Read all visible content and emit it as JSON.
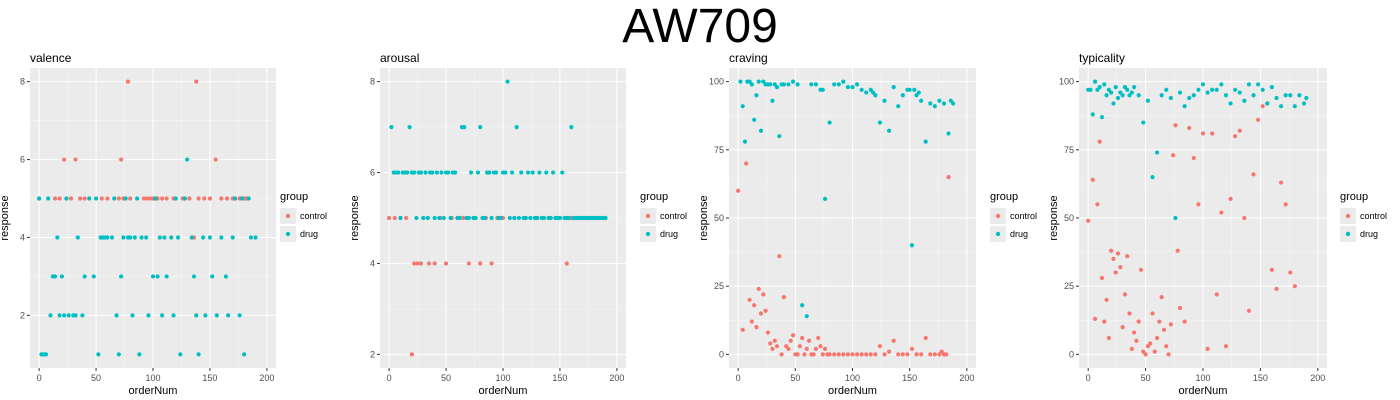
{
  "title": "AW709",
  "colors": {
    "control": "#F8766D",
    "drug": "#00BFC4"
  },
  "legend": {
    "title": "group",
    "labels": [
      "control",
      "drug"
    ]
  },
  "chart_data": [
    {
      "type": "scatter",
      "title": "valence",
      "xlabel": "orderNum",
      "ylabel": "response",
      "xlim": [
        -8,
        208
      ],
      "ylim": [
        0.65,
        8.35
      ],
      "xticks": [
        0,
        50,
        100,
        150,
        200
      ],
      "yticks": [
        2,
        4,
        6,
        8
      ],
      "grid": true,
      "legend_position": "right",
      "series": [
        {
          "name": "control",
          "x": [
            0,
            14,
            18,
            22,
            24,
            28,
            32,
            36,
            40,
            55,
            60,
            70,
            72,
            74,
            78,
            80,
            92,
            95,
            98,
            100,
            104,
            108,
            112,
            118,
            126,
            132,
            136,
            138,
            140,
            145,
            150,
            155,
            160,
            165,
            170,
            172,
            176,
            180,
            182
          ],
          "y": [
            5,
            5,
            5,
            6,
            5,
            5,
            6,
            5,
            5,
            5,
            5,
            5,
            6,
            5,
            8,
            5,
            5,
            5,
            5,
            5,
            5,
            5,
            5,
            5,
            5,
            5,
            4,
            8,
            5,
            5,
            5,
            6,
            5,
            5,
            5,
            5,
            5,
            5,
            5
          ]
        },
        {
          "name": "drug",
          "x": [
            0,
            2,
            4,
            6,
            8,
            10,
            12,
            14,
            16,
            18,
            20,
            22,
            24,
            26,
            30,
            32,
            34,
            38,
            40,
            44,
            48,
            50,
            52,
            54,
            56,
            58,
            60,
            64,
            66,
            68,
            70,
            72,
            74,
            76,
            78,
            80,
            82,
            84,
            86,
            88,
            90,
            94,
            96,
            100,
            102,
            104,
            106,
            108,
            110,
            112,
            116,
            118,
            120,
            122,
            124,
            128,
            130,
            134,
            136,
            138,
            140,
            144,
            146,
            150,
            152,
            156,
            160,
            164,
            166,
            170,
            172,
            176,
            178,
            180,
            184,
            186,
            190
          ],
          "y": [
            5,
            1,
            1,
            1,
            5,
            2,
            3,
            3,
            4,
            2,
            3,
            2,
            5,
            2,
            2,
            2,
            4,
            2,
            3,
            5,
            3,
            5,
            1,
            4,
            4,
            4,
            4,
            4,
            5,
            2,
            1,
            3,
            4,
            5,
            4,
            4,
            2,
            4,
            5,
            1,
            4,
            4,
            2,
            3,
            5,
            3,
            4,
            2,
            4,
            3,
            4,
            2,
            5,
            4,
            1,
            5,
            6,
            4,
            3,
            2,
            1,
            4,
            2,
            4,
            3,
            2,
            4,
            3,
            2,
            4,
            5,
            2,
            5,
            1,
            5,
            4,
            4
          ]
        }
      ]
    },
    {
      "type": "scatter",
      "title": "arousal",
      "xlabel": "orderNum",
      "ylabel": "response",
      "xlim": [
        -8,
        208
      ],
      "ylim": [
        1.7,
        8.3
      ],
      "xticks": [
        0,
        50,
        100,
        150,
        200
      ],
      "yticks": [
        2,
        4,
        6,
        8
      ],
      "grid": true,
      "legend_position": "right",
      "series": [
        {
          "name": "control",
          "x": [
            0,
            5,
            10,
            15,
            20,
            22,
            25,
            28,
            30,
            35,
            40,
            45,
            50,
            55,
            60,
            65,
            70,
            75,
            80,
            85,
            90,
            95,
            100,
            110,
            120,
            130,
            140,
            150,
            156,
            160,
            165,
            170,
            175,
            180,
            185,
            190
          ],
          "y": [
            5,
            5,
            5,
            5,
            2,
            4,
            4,
            4,
            5,
            4,
            4,
            5,
            4,
            5,
            5,
            5,
            4,
            5,
            4,
            5,
            4,
            5,
            5,
            5,
            5,
            5,
            5,
            5,
            4,
            5,
            5,
            5,
            5,
            5,
            5,
            5
          ]
        },
        {
          "name": "drug",
          "x": [
            2,
            4,
            6,
            8,
            10,
            12,
            14,
            16,
            18,
            20,
            22,
            24,
            26,
            28,
            30,
            32,
            34,
            36,
            38,
            40,
            42,
            44,
            46,
            48,
            50,
            52,
            54,
            56,
            58,
            60,
            62,
            64,
            66,
            68,
            70,
            72,
            74,
            76,
            78,
            80,
            82,
            84,
            86,
            88,
            90,
            92,
            94,
            96,
            98,
            100,
            102,
            104,
            106,
            108,
            110,
            112,
            114,
            116,
            118,
            120,
            122,
            124,
            126,
            128,
            130,
            132,
            134,
            136,
            138,
            140,
            142,
            144,
            146,
            148,
            150,
            152,
            154,
            156,
            158,
            160,
            162,
            164,
            166,
            168,
            170,
            172,
            174,
            176,
            178,
            180,
            182,
            184,
            186,
            188,
            190
          ],
          "y": [
            7,
            6,
            6,
            6,
            5,
            6,
            6,
            6,
            7,
            6,
            6,
            5,
            6,
            6,
            5,
            6,
            5,
            6,
            6,
            5,
            6,
            5,
            6,
            5,
            6,
            6,
            5,
            6,
            6,
            5,
            5,
            7,
            7,
            5,
            5,
            6,
            5,
            5,
            6,
            7,
            5,
            5,
            6,
            6,
            5,
            6,
            6,
            5,
            5,
            6,
            6,
            8,
            5,
            6,
            5,
            7,
            5,
            6,
            5,
            5,
            6,
            5,
            6,
            5,
            5,
            6,
            5,
            5,
            6,
            5,
            5,
            6,
            5,
            5,
            5,
            6,
            5,
            5,
            5,
            7,
            5,
            5,
            5,
            5,
            5,
            5,
            5,
            5,
            5,
            5,
            5,
            5,
            5,
            5,
            5
          ]
        }
      ]
    },
    {
      "type": "scatter",
      "title": "craving",
      "xlabel": "orderNum",
      "ylabel": "response",
      "xlim": [
        -8,
        208
      ],
      "ylim": [
        -5,
        105
      ],
      "xticks": [
        0,
        50,
        100,
        150,
        200
      ],
      "yticks": [
        0,
        25,
        50,
        75,
        100
      ],
      "grid": true,
      "legend_position": "right",
      "series": [
        {
          "name": "control",
          "x": [
            0,
            4,
            7,
            10,
            12,
            14,
            16,
            18,
            20,
            22,
            24,
            26,
            28,
            30,
            32,
            34,
            36,
            38,
            40,
            42,
            44,
            46,
            48,
            50,
            52,
            54,
            56,
            58,
            60,
            62,
            64,
            66,
            68,
            70,
            72,
            74,
            76,
            78,
            80,
            84,
            88,
            92,
            96,
            100,
            104,
            108,
            112,
            116,
            120,
            124,
            128,
            132,
            136,
            140,
            144,
            148,
            152,
            156,
            160,
            164,
            168,
            172,
            176,
            178,
            180,
            182,
            184
          ],
          "y": [
            60,
            9,
            70,
            20,
            12,
            18,
            10,
            24,
            15,
            22,
            16,
            8,
            4,
            2,
            5,
            3,
            36,
            0,
            21,
            3,
            2,
            5,
            7,
            0,
            0,
            3,
            6,
            0,
            2,
            5,
            0,
            0,
            2,
            6,
            3,
            0,
            2,
            0,
            0,
            0,
            0,
            0,
            0,
            0,
            0,
            0,
            0,
            0,
            0,
            3,
            0,
            1,
            5,
            0,
            0,
            0,
            2,
            0,
            0,
            6,
            0,
            0,
            0,
            1,
            0,
            0,
            65
          ]
        },
        {
          "name": "drug",
          "x": [
            2,
            4,
            6,
            8,
            10,
            12,
            14,
            16,
            18,
            20,
            22,
            24,
            26,
            28,
            30,
            32,
            34,
            36,
            38,
            40,
            44,
            48,
            52,
            56,
            60,
            64,
            68,
            72,
            74,
            76,
            80,
            84,
            88,
            92,
            96,
            100,
            104,
            108,
            112,
            116,
            118,
            120,
            124,
            128,
            132,
            136,
            140,
            144,
            148,
            150,
            152,
            154,
            156,
            158,
            160,
            164,
            168,
            172,
            176,
            180,
            184,
            186,
            188
          ],
          "y": [
            100,
            91,
            78,
            100,
            100,
            99,
            86,
            95,
            100,
            82,
            100,
            99,
            99,
            99,
            93,
            99,
            98,
            80,
            99,
            99,
            99,
            100,
            99,
            18,
            14,
            99,
            99,
            97,
            97,
            57,
            85,
            99,
            99,
            100,
            98,
            98,
            99,
            97,
            96,
            97,
            96,
            95,
            85,
            93,
            82,
            98,
            91,
            95,
            97,
            97,
            40,
            97,
            95,
            96,
            93,
            78,
            92,
            91,
            93,
            92,
            81,
            93,
            92
          ]
        }
      ]
    },
    {
      "type": "scatter",
      "title": "typicality",
      "xlabel": "orderNum",
      "ylabel": "response",
      "xlim": [
        -8,
        208
      ],
      "ylim": [
        -5,
        105
      ],
      "xticks": [
        0,
        50,
        100,
        150,
        200
      ],
      "yticks": [
        0,
        25,
        50,
        75,
        100
      ],
      "grid": true,
      "legend_position": "right",
      "series": [
        {
          "name": "control",
          "x": [
            0,
            4,
            6,
            8,
            10,
            12,
            14,
            16,
            18,
            20,
            22,
            24,
            26,
            28,
            30,
            32,
            34,
            36,
            38,
            40,
            42,
            44,
            46,
            48,
            50,
            52,
            54,
            56,
            58,
            60,
            62,
            64,
            66,
            68,
            70,
            72,
            74,
            76,
            78,
            80,
            84,
            88,
            92,
            96,
            100,
            104,
            108,
            112,
            116,
            120,
            124,
            128,
            132,
            136,
            140,
            144,
            148,
            152,
            156,
            160,
            164,
            168,
            172,
            176,
            180
          ],
          "y": [
            49,
            64,
            13,
            55,
            78,
            28,
            12,
            20,
            6,
            38,
            35,
            30,
            37,
            32,
            10,
            22,
            36,
            15,
            2,
            8,
            5,
            12,
            31,
            1,
            0,
            3,
            4,
            15,
            1,
            6,
            12,
            21,
            9,
            3,
            0,
            11,
            73,
            84,
            38,
            17,
            12,
            83,
            72,
            55,
            81,
            2,
            81,
            22,
            52,
            3,
            57,
            80,
            82,
            50,
            16,
            66,
            86,
            91,
            92,
            31,
            24,
            63,
            55,
            30,
            25
          ]
        },
        {
          "name": "drug",
          "x": [
            0,
            2,
            4,
            6,
            8,
            10,
            12,
            14,
            16,
            18,
            20,
            22,
            24,
            26,
            28,
            30,
            32,
            34,
            36,
            38,
            40,
            44,
            48,
            52,
            56,
            60,
            64,
            68,
            72,
            76,
            80,
            84,
            88,
            92,
            96,
            100,
            104,
            108,
            112,
            116,
            120,
            124,
            128,
            132,
            136,
            140,
            144,
            148,
            152,
            156,
            160,
            164,
            168,
            172,
            176,
            180,
            184,
            188,
            190
          ],
          "y": [
            97,
            97,
            88,
            100,
            97,
            98,
            87,
            99,
            95,
            97,
            96,
            92,
            98,
            94,
            96,
            95,
            98,
            97,
            95,
            96,
            98,
            95,
            85,
            93,
            65,
            74,
            95,
            97,
            94,
            50,
            96,
            91,
            94,
            95,
            97,
            99,
            96,
            97,
            97,
            99,
            95,
            92,
            97,
            96,
            93,
            99,
            95,
            99,
            97,
            92,
            98,
            94,
            91,
            95,
            95,
            91,
            95,
            92,
            94
          ]
        }
      ]
    }
  ]
}
